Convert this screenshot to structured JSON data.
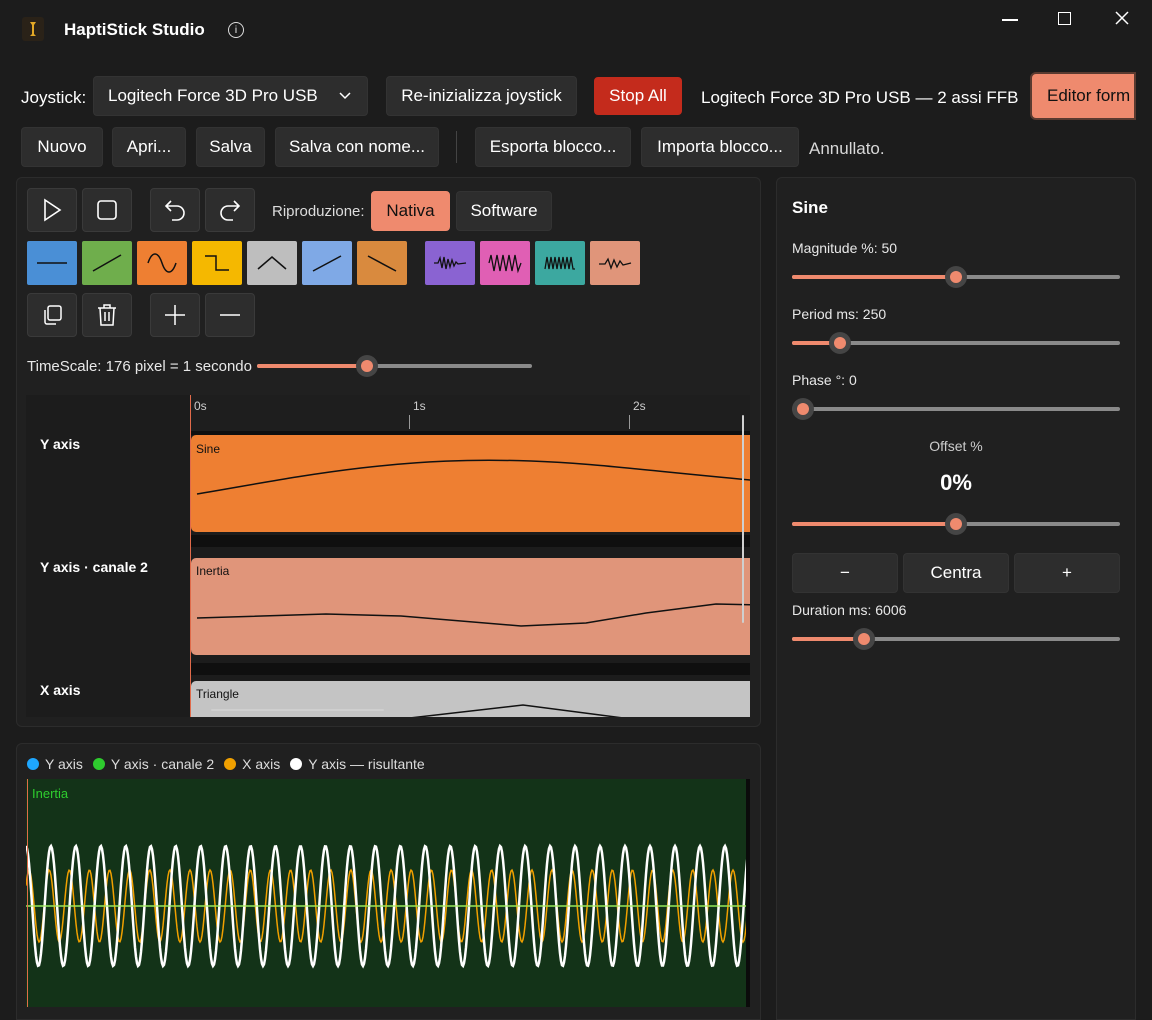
{
  "app": {
    "title": "HaptiStick Studio"
  },
  "toolbar1": {
    "joystick_label": "Joystick:",
    "device_select": "Logitech Force 3D Pro USB",
    "reinit": "Re-inizializza joystick",
    "stop_all": "Stop All",
    "status": "Logitech Force 3D Pro USB — 2 assi FFB",
    "editor": "Editor form"
  },
  "toolbar2": {
    "new": "Nuovo",
    "open": "Apri...",
    "save": "Salva",
    "save_as": "Salva con nome...",
    "export": "Esporta blocco...",
    "import": "Importa blocco...",
    "status": "Annullato."
  },
  "editor": {
    "playback_label": "Riproduzione:",
    "mode_native": "Nativa",
    "mode_software": "Software",
    "timescale_label": "TimeScale: 176 pixel = 1 secondo",
    "timescale_value": 0.42,
    "shapes": [
      {
        "name": "constant",
        "color": "#4a8fd6"
      },
      {
        "name": "ramp-up",
        "color": "#6fae4c"
      },
      {
        "name": "sine",
        "color": "#ee7f32"
      },
      {
        "name": "square",
        "color": "#f5b800"
      },
      {
        "name": "triangle",
        "color": "#bebebe"
      },
      {
        "name": "sawtooth-up",
        "color": "#7fa9e6"
      },
      {
        "name": "sawtooth-down",
        "color": "#d98a3e"
      },
      {
        "name": "spring",
        "color": "#8a63d2"
      },
      {
        "name": "damper",
        "color": "#e05fb4"
      },
      {
        "name": "friction",
        "color": "#3ca8a0"
      },
      {
        "name": "inertia",
        "color": "#e0957a"
      }
    ]
  },
  "timeline": {
    "ruler": [
      "0s",
      "1s",
      "2s"
    ],
    "tracks": [
      {
        "label": "Y axis",
        "block": "Sine",
        "color": "#ee7f32"
      },
      {
        "label": "Y axis · canale 2",
        "block": "Inertia",
        "color": "#e0957a"
      },
      {
        "label": "X axis",
        "block": "Triangle",
        "color": "#c4c4c4"
      }
    ]
  },
  "preview": {
    "legend": [
      {
        "label": "Y axis",
        "color": "#1ea7ff"
      },
      {
        "label": "Y axis · canale 2",
        "color": "#2ecc2e"
      },
      {
        "label": "X axis",
        "color": "#f0a000"
      },
      {
        "label": "Y axis — risultante",
        "color": "#ffffff"
      }
    ],
    "overlay_label": "Inertia"
  },
  "properties": {
    "title": "Sine",
    "magnitude_label": "Magnitude %: 50",
    "magnitude_value": 0.5,
    "period_label": "Period ms: 250",
    "period_value": 0.15,
    "phase_label": "Phase °: 0",
    "phase_value": 0,
    "offset_label": "Offset %",
    "offset_value_text": "0%",
    "offset_value": 0.5,
    "minus": "−",
    "center": "Centra",
    "plus": "+",
    "duration_label": "Duration ms: 6006",
    "duration_value": 0.22
  }
}
